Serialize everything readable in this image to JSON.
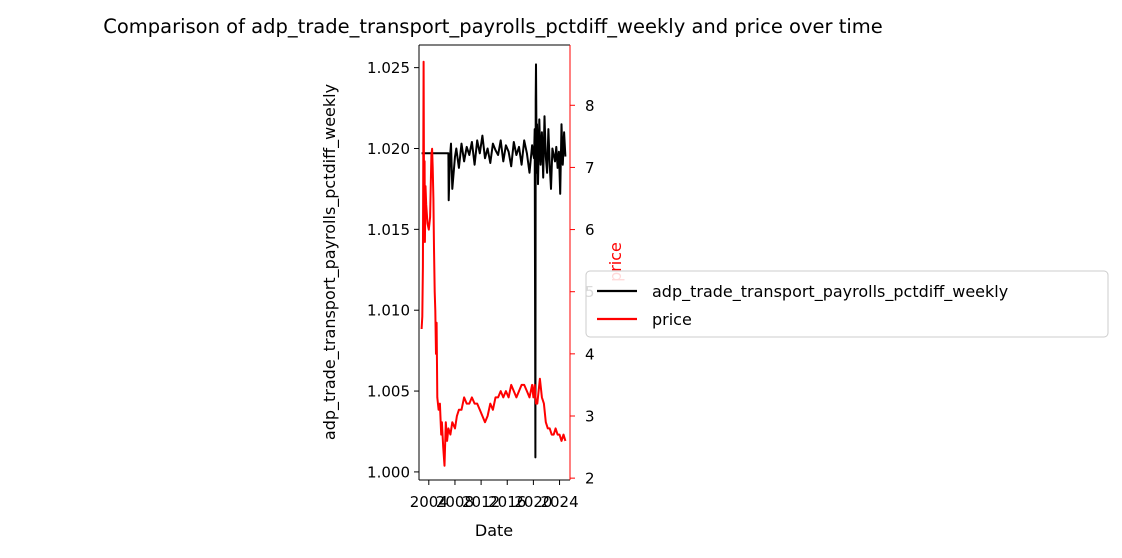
{
  "chart_data": {
    "type": "line",
    "title": "Comparison of adp_trade_transport_payrolls_pctdiff_weekly and price over time",
    "xlabel": "Date",
    "ylabel_left": "adp_trade_transport_payrolls_pctdiff_weekly",
    "ylabel_right": "price",
    "x_ticks": [
      "2004",
      "2008",
      "2012",
      "2016",
      "2020",
      "2024"
    ],
    "xlim": [
      2002.5,
      2025.6
    ],
    "y_left_ticks": [
      "1.000",
      "1.005",
      "1.010",
      "1.015",
      "1.020",
      "1.025"
    ],
    "y_left_lim": [
      0.9995,
      1.0264
    ],
    "y_right_ticks": [
      "2",
      "3",
      "4",
      "5",
      "6",
      "7",
      "8"
    ],
    "y_right_lim": [
      1.97,
      8.97
    ],
    "legend_placement": "center-left outside right",
    "grid": false,
    "colors": {
      "left_series": "#000000",
      "right_series": "#ff0000",
      "right_axis": "#ff0000"
    },
    "series": [
      {
        "name": "adp_trade_transport_payrolls_pctdiff_weekly",
        "axis": "left",
        "x": [
          2002.9,
          2005.0,
          2007.0,
          2007.05,
          2007.2,
          2007.3,
          2007.4,
          2007.6,
          2008.0,
          2008.2,
          2008.6,
          2009.0,
          2009.4,
          2009.8,
          2010.2,
          2010.6,
          2011.0,
          2011.4,
          2011.8,
          2012.2,
          2012.6,
          2013.0,
          2013.4,
          2013.8,
          2014.2,
          2014.6,
          2015.0,
          2015.4,
          2015.8,
          2016.2,
          2016.6,
          2017.0,
          2017.4,
          2017.8,
          2018.2,
          2018.6,
          2019.0,
          2019.4,
          2019.8,
          2020.0,
          2020.1,
          2020.2,
          2020.3,
          2020.35,
          2020.4,
          2020.5,
          2020.55,
          2020.7,
          2020.9,
          2021.1,
          2021.3,
          2021.5,
          2021.7,
          2021.9,
          2022.1,
          2022.3,
          2022.5,
          2022.7,
          2022.9,
          2023.1,
          2023.3,
          2023.5,
          2023.7,
          2023.9,
          2024.1,
          2024.3,
          2024.5,
          2024.7,
          2024.9
        ],
        "y": [
          1.0197,
          1.0197,
          1.0197,
          1.0168,
          1.019,
          1.0198,
          1.0203,
          1.0175,
          1.0195,
          1.02,
          1.0188,
          1.0203,
          1.0192,
          1.0201,
          1.0196,
          1.0204,
          1.019,
          1.0205,
          1.0197,
          1.0208,
          1.0194,
          1.02,
          1.0191,
          1.0203,
          1.0199,
          1.0196,
          1.0205,
          1.0192,
          1.0202,
          1.0198,
          1.0189,
          1.0204,
          1.0196,
          1.0201,
          1.019,
          1.0205,
          1.0197,
          1.0185,
          1.0202,
          1.0196,
          1.0194,
          1.0212,
          1.0009,
          1.023,
          1.0252,
          1.0185,
          1.0215,
          1.0178,
          1.0218,
          1.019,
          1.021,
          1.0182,
          1.022,
          1.0195,
          1.0185,
          1.0212,
          1.019,
          1.0175,
          1.02,
          1.0196,
          1.0192,
          1.0201,
          1.0188,
          1.0198,
          1.0172,
          1.0215,
          1.019,
          1.021,
          1.0195
        ]
      },
      {
        "name": "price",
        "axis": "right",
        "x": [
          2002.9,
          2003.0,
          2003.1,
          2003.2,
          2003.25,
          2003.3,
          2003.35,
          2003.4,
          2003.5,
          2003.6,
          2003.8,
          2004.0,
          2004.2,
          2004.4,
          2004.5,
          2004.6,
          2004.7,
          2004.8,
          2004.9,
          2005.0,
          2005.1,
          2005.2,
          2005.3,
          2005.5,
          2005.7,
          2005.9,
          2006.0,
          2006.2,
          2006.4,
          2006.6,
          2006.8,
          2007.0,
          2007.3,
          2007.6,
          2008.0,
          2008.3,
          2008.6,
          2009.0,
          2009.4,
          2009.8,
          2010.2,
          2010.6,
          2011.0,
          2011.4,
          2011.8,
          2012.2,
          2012.6,
          2013.0,
          2013.4,
          2013.8,
          2014.2,
          2014.6,
          2015.0,
          2015.4,
          2015.8,
          2016.2,
          2016.6,
          2017.0,
          2017.4,
          2017.8,
          2018.2,
          2018.6,
          2019.0,
          2019.4,
          2019.8,
          2020.0,
          2020.2,
          2020.4,
          2020.6,
          2020.8,
          2021.0,
          2021.3,
          2021.6,
          2021.9,
          2022.2,
          2022.5,
          2022.8,
          2023.1,
          2023.4,
          2023.7,
          2024.0,
          2024.3,
          2024.6,
          2024.9
        ],
        "y": [
          4.4,
          4.6,
          5.4,
          8.7,
          7.2,
          6.0,
          7.1,
          5.8,
          6.7,
          6.4,
          6.1,
          6.0,
          6.2,
          7.2,
          7.3,
          7.0,
          6.5,
          5.7,
          5.0,
          4.7,
          4.0,
          4.5,
          3.3,
          3.1,
          3.2,
          2.7,
          2.9,
          2.5,
          2.2,
          2.9,
          2.6,
          2.8,
          2.7,
          2.9,
          2.8,
          3.0,
          3.1,
          3.1,
          3.3,
          3.2,
          3.2,
          3.3,
          3.2,
          3.2,
          3.1,
          3.0,
          2.9,
          3.0,
          3.2,
          3.1,
          3.3,
          3.3,
          3.4,
          3.3,
          3.4,
          3.3,
          3.5,
          3.4,
          3.3,
          3.4,
          3.5,
          3.5,
          3.4,
          3.3,
          3.5,
          3.3,
          3.5,
          3.2,
          3.2,
          3.4,
          3.6,
          3.3,
          3.2,
          2.9,
          2.8,
          2.8,
          2.7,
          2.7,
          2.8,
          2.7,
          2.7,
          2.6,
          2.7,
          2.6
        ]
      }
    ]
  }
}
